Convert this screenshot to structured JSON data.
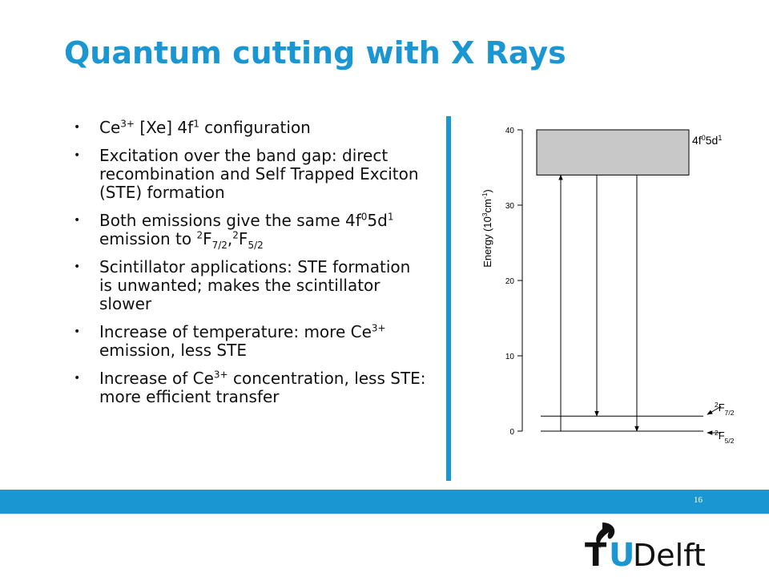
{
  "title": "Quantum cutting with X Rays",
  "bullets": [
    [
      {
        "text": "Ce"
      },
      {
        "sup": "3+"
      },
      {
        "text": " [Xe] 4f"
      },
      {
        "sup": "1"
      },
      {
        "text": " configuration"
      }
    ],
    [
      {
        "text": "Excitation over the band gap: direct recombination and Self Trapped Exciton (STE) formation"
      }
    ],
    [
      {
        "text": "Both emissions give the same 4f"
      },
      {
        "sup": "0"
      },
      {
        "text": "5d"
      },
      {
        "sup": "1"
      },
      {
        "text": " emission to "
      },
      {
        "sup": "2"
      },
      {
        "text": "F"
      },
      {
        "sub": "7/2"
      },
      {
        "text": ","
      },
      {
        "sup": "2"
      },
      {
        "text": "F"
      },
      {
        "sub": "5/2"
      }
    ],
    [
      {
        "text": "Scintillator applications: STE formation is unwanted; makes the scintillator slower"
      }
    ],
    [
      {
        "text": "Increase of temperature: more Ce"
      },
      {
        "sup": "3+"
      },
      {
        "text": " emission, less STE"
      }
    ],
    [
      {
        "text": "Increase of Ce"
      },
      {
        "sup": "3+"
      },
      {
        "text": " concentration, less STE: more efficient transfer"
      }
    ]
  ],
  "diagram": {
    "ylabel": [
      {
        "text": "Energy (10"
      },
      {
        "sup": "3"
      },
      {
        "text": "cm"
      },
      {
        "sup": "-1"
      },
      {
        "text": ")"
      }
    ],
    "ylim": [
      0,
      40
    ],
    "yticks": [
      0,
      10,
      20,
      30,
      40
    ],
    "band": {
      "label": [
        {
          "text": "4f"
        },
        {
          "sup": "0"
        },
        {
          "text": "5d"
        },
        {
          "sup": "1"
        }
      ],
      "bottom": 34,
      "top": 40
    },
    "levels": [
      {
        "label": [
          {
            "sup": "2"
          },
          {
            "text": "F"
          },
          {
            "sub": "7/2"
          }
        ],
        "value": 2
      },
      {
        "label": [
          {
            "sup": "2"
          },
          {
            "text": "F"
          },
          {
            "sub": "5/2"
          }
        ],
        "value": 0
      }
    ],
    "transitions": [
      {
        "from": 0,
        "to": 34
      },
      {
        "from": 34,
        "to": 2
      },
      {
        "from": 34,
        "to": 0
      }
    ]
  },
  "page_number": "16",
  "logo": {
    "t": "T",
    "u": "U",
    "name": "Delft"
  }
}
